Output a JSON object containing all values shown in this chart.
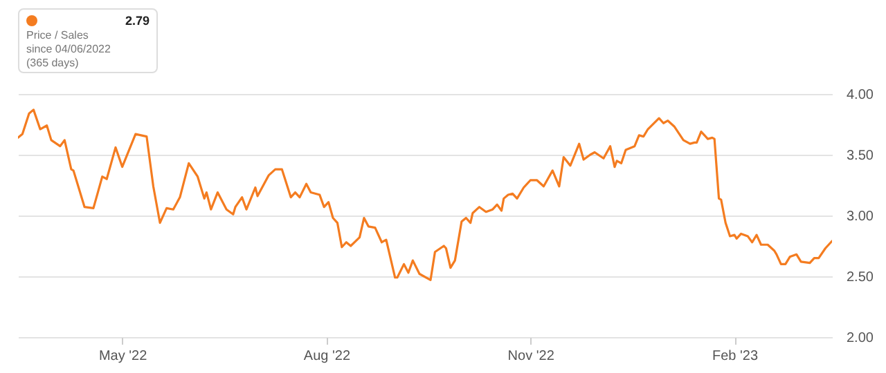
{
  "chart_data": {
    "type": "line",
    "annotations": [
      "2.79",
      "Price / Sales",
      "since 04/06/2022",
      "(365 days)"
    ],
    "x": [
      "2022-03-15",
      "2022-03-17",
      "2022-03-20",
      "2022-03-22",
      "2022-03-25",
      "2022-03-28",
      "2022-03-30",
      "2022-04-03",
      "2022-04-05",
      "2022-04-08",
      "2022-04-09",
      "2022-04-11",
      "2022-04-14",
      "2022-04-18",
      "2022-04-20",
      "2022-04-22",
      "2022-04-24",
      "2022-04-28",
      "2022-05-01",
      "2022-05-07",
      "2022-05-12",
      "2022-05-15",
      "2022-05-18",
      "2022-05-21",
      "2022-05-24",
      "2022-05-27",
      "2022-05-31",
      "2022-06-04",
      "2022-06-07",
      "2022-06-08",
      "2022-06-10",
      "2022-06-13",
      "2022-06-17",
      "2022-06-20",
      "2022-06-21",
      "2022-06-24",
      "2022-06-26",
      "2022-06-30",
      "2022-07-01",
      "2022-07-06",
      "2022-07-09",
      "2022-07-12",
      "2022-07-16",
      "2022-07-18",
      "2022-07-20",
      "2022-07-23",
      "2022-07-25",
      "2022-07-29",
      "2022-07-31",
      "2022-08-02",
      "2022-08-04",
      "2022-08-06",
      "2022-08-08",
      "2022-08-10",
      "2022-08-12",
      "2022-08-16",
      "2022-08-18",
      "2022-08-20",
      "2022-08-23",
      "2022-08-26",
      "2022-08-28",
      "2022-09-01",
      "2022-09-02",
      "2022-09-05",
      "2022-09-07",
      "2022-09-09",
      "2022-09-12",
      "2022-09-17",
      "2022-09-19",
      "2022-09-23",
      "2022-09-24",
      "2022-09-26",
      "2022-09-28",
      "2022-10-01",
      "2022-10-03",
      "2022-10-05",
      "2022-10-06",
      "2022-10-09",
      "2022-10-12",
      "2022-10-15",
      "2022-10-17",
      "2022-10-19",
      "2022-10-20",
      "2022-10-22",
      "2022-10-24",
      "2022-10-26",
      "2022-10-29",
      "2022-11-01",
      "2022-11-04",
      "2022-11-07",
      "2022-11-11",
      "2022-11-14",
      "2022-11-16",
      "2022-11-19",
      "2022-11-23",
      "2022-11-25",
      "2022-11-28",
      "2022-11-30",
      "2022-12-04",
      "2022-12-07",
      "2022-12-09",
      "2022-12-10",
      "2022-12-12",
      "2022-12-14",
      "2022-12-18",
      "2022-12-20",
      "2022-12-22",
      "2022-12-24",
      "2022-12-29",
      "2022-12-31",
      "2023-01-02",
      "2023-01-05",
      "2023-01-09",
      "2023-01-12",
      "2023-01-14",
      "2023-01-15",
      "2023-01-17",
      "2023-01-20",
      "2023-01-22",
      "2023-01-23",
      "2023-01-25",
      "2023-01-26",
      "2023-01-28",
      "2023-01-30",
      "2023-02-01",
      "2023-02-02",
      "2023-02-04",
      "2023-02-07",
      "2023-02-09",
      "2023-02-11",
      "2023-02-13",
      "2023-02-16",
      "2023-02-19",
      "2023-02-20",
      "2023-02-22",
      "2023-02-24",
      "2023-02-26",
      "2023-03-01",
      "2023-03-03",
      "2023-03-07",
      "2023-03-09",
      "2023-03-11",
      "2023-03-14",
      "2023-03-17"
    ],
    "series": [
      {
        "color": "#f47c20",
        "values": [
          3.64,
          3.67,
          3.84,
          3.87,
          3.71,
          3.74,
          3.62,
          3.57,
          3.62,
          3.38,
          3.37,
          3.25,
          3.07,
          3.06,
          3.19,
          3.32,
          3.3,
          3.56,
          3.4,
          3.67,
          3.65,
          3.24,
          2.94,
          3.06,
          3.05,
          3.15,
          3.43,
          3.32,
          3.14,
          3.19,
          3.05,
          3.19,
          3.05,
          3.01,
          3.07,
          3.15,
          3.05,
          3.23,
          3.16,
          3.33,
          3.38,
          3.38,
          3.15,
          3.19,
          3.15,
          3.26,
          3.19,
          3.17,
          3.07,
          3.11,
          2.98,
          2.94,
          2.74,
          2.78,
          2.75,
          2.82,
          2.98,
          2.91,
          2.9,
          2.78,
          2.8,
          2.49,
          2.49,
          2.6,
          2.53,
          2.63,
          2.52,
          2.47,
          2.7,
          2.75,
          2.73,
          2.57,
          2.63,
          2.95,
          2.98,
          2.94,
          3.02,
          3.07,
          3.03,
          3.05,
          3.09,
          3.04,
          3.14,
          3.17,
          3.18,
          3.14,
          3.23,
          3.29,
          3.29,
          3.24,
          3.37,
          3.24,
          3.48,
          3.41,
          3.59,
          3.46,
          3.5,
          3.52,
          3.47,
          3.57,
          3.4,
          3.45,
          3.43,
          3.54,
          3.57,
          3.66,
          3.65,
          3.71,
          3.8,
          3.76,
          3.78,
          3.73,
          3.62,
          3.59,
          3.6,
          3.6,
          3.69,
          3.63,
          3.64,
          3.63,
          3.14,
          3.13,
          2.94,
          2.83,
          2.84,
          2.81,
          2.85,
          2.83,
          2.78,
          2.84,
          2.76,
          2.76,
          2.71,
          2.68,
          2.6,
          2.6,
          2.66,
          2.68,
          2.62,
          2.61,
          2.65,
          2.65,
          2.73,
          2.79
        ]
      }
    ],
    "xlim": [
      "2022-03-15",
      "2023-03-17"
    ],
    "xticks": [
      {
        "value": "2022-05-01",
        "label": "May '22"
      },
      {
        "value": "2022-08-01",
        "label": "Aug '22"
      },
      {
        "value": "2022-11-01",
        "label": "Nov '22"
      },
      {
        "value": "2023-02-01",
        "label": "Feb '23"
      }
    ],
    "ylim": [
      2,
      4
    ],
    "yticks": [
      {
        "value": 2,
        "label": "2.00"
      },
      {
        "value": 2.5,
        "label": "2.50"
      },
      {
        "value": 3,
        "label": "3.00"
      },
      {
        "value": 3.5,
        "label": "3.50"
      },
      {
        "value": 4,
        "label": "4.00"
      }
    ],
    "grid": "y",
    "marker": "none",
    "line_style": "solid"
  }
}
